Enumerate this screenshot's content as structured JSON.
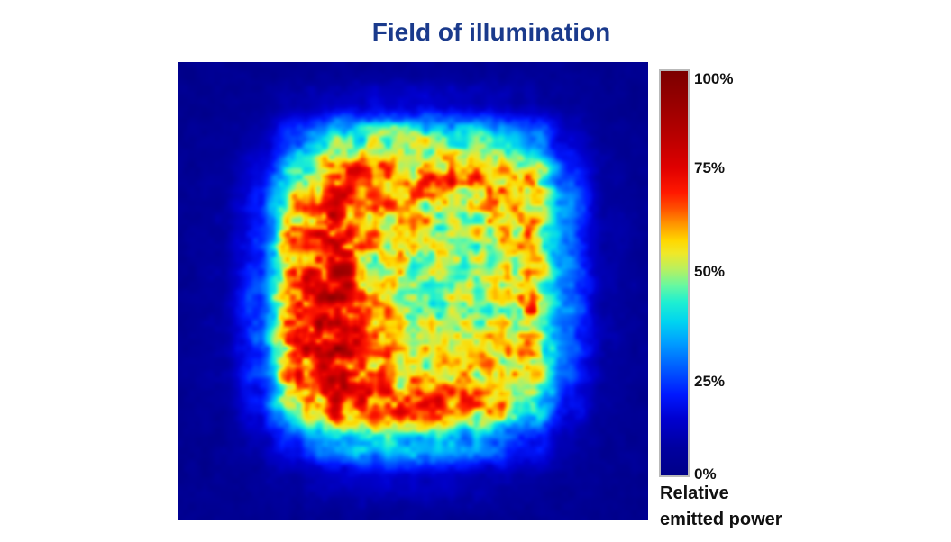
{
  "page": {
    "background": "#ffffff"
  },
  "title": {
    "text": "Field of illumination",
    "color": "#1a3a8c"
  },
  "colorbar": {
    "frame_color": "#b9b9b9",
    "ticks": [
      {
        "label": "100%",
        "value": 100,
        "frac_from_top": 0.024
      },
      {
        "label": "75%",
        "value": 75,
        "frac_from_top": 0.243
      },
      {
        "label": "50%",
        "value": 50,
        "frac_from_top": 0.497
      },
      {
        "label": "25%",
        "value": 25,
        "frac_from_top": 0.766
      },
      {
        "label": "0%",
        "value": 0,
        "frac_from_top": 0.993
      }
    ],
    "caption_lines": [
      "Relative",
      "emitted power"
    ]
  },
  "chart_data": {
    "type": "heatmap",
    "title": "Field of illumination",
    "value_label": "Relative emitted power",
    "value_unit": "%",
    "value_range": [
      0,
      100
    ],
    "colorbar_ticks_percent": [
      100,
      75,
      50,
      25,
      0
    ],
    "legend_position": "right",
    "colormap": "jet-like",
    "colormap_stops": [
      {
        "t": 0.0,
        "color": "#000088"
      },
      {
        "t": 0.07,
        "color": "#0000a0"
      },
      {
        "t": 0.14,
        "color": "#0000d0"
      },
      {
        "t": 0.2,
        "color": "#0018ff"
      },
      {
        "t": 0.27,
        "color": "#0060ff"
      },
      {
        "t": 0.33,
        "color": "#00a0ff"
      },
      {
        "t": 0.38,
        "color": "#00d4f0"
      },
      {
        "t": 0.43,
        "color": "#20f0d0"
      },
      {
        "t": 0.47,
        "color": "#68f8a0"
      },
      {
        "t": 0.51,
        "color": "#b8f060"
      },
      {
        "t": 0.55,
        "color": "#f0e828"
      },
      {
        "t": 0.58,
        "color": "#ffd800"
      },
      {
        "t": 0.62,
        "color": "#ff9800"
      },
      {
        "t": 0.66,
        "color": "#ff5000"
      },
      {
        "t": 0.7,
        "color": "#ff1800"
      },
      {
        "t": 0.76,
        "color": "#e00000"
      },
      {
        "t": 0.84,
        "color": "#b80000"
      },
      {
        "t": 0.92,
        "color": "#980000"
      },
      {
        "t": 1.0,
        "color": "#7c0000"
      }
    ],
    "grid_rows": 13,
    "grid_cols": 13,
    "values_percent": [
      [
        2,
        2,
        3,
        3,
        4,
        4,
        4,
        4,
        4,
        3,
        3,
        2,
        2
      ],
      [
        2,
        3,
        5,
        8,
        11,
        13,
        13,
        12,
        10,
        8,
        5,
        3,
        2
      ],
      [
        3,
        4,
        9,
        25,
        42,
        48,
        47,
        45,
        42,
        32,
        14,
        5,
        3
      ],
      [
        3,
        5,
        15,
        48,
        68,
        70,
        66,
        64,
        62,
        55,
        25,
        7,
        3
      ],
      [
        4,
        6,
        20,
        60,
        72,
        60,
        56,
        54,
        55,
        58,
        28,
        8,
        4
      ],
      [
        4,
        6,
        22,
        65,
        75,
        58,
        54,
        50,
        52,
        60,
        27,
        8,
        4
      ],
      [
        4,
        7,
        25,
        70,
        80,
        58,
        52,
        48,
        50,
        62,
        28,
        8,
        4
      ],
      [
        4,
        7,
        25,
        72,
        82,
        60,
        52,
        49,
        52,
        60,
        26,
        8,
        4
      ],
      [
        4,
        6,
        22,
        68,
        78,
        62,
        56,
        54,
        56,
        58,
        24,
        7,
        4
      ],
      [
        3,
        5,
        18,
        55,
        72,
        70,
        68,
        66,
        58,
        45,
        18,
        6,
        3
      ],
      [
        3,
        4,
        9,
        22,
        35,
        40,
        38,
        36,
        30,
        20,
        10,
        4,
        3
      ],
      [
        2,
        3,
        5,
        8,
        11,
        13,
        12,
        11,
        9,
        7,
        4,
        3,
        2
      ],
      [
        2,
        2,
        3,
        3,
        4,
        4,
        4,
        4,
        4,
        3,
        3,
        2,
        2
      ]
    ]
  }
}
